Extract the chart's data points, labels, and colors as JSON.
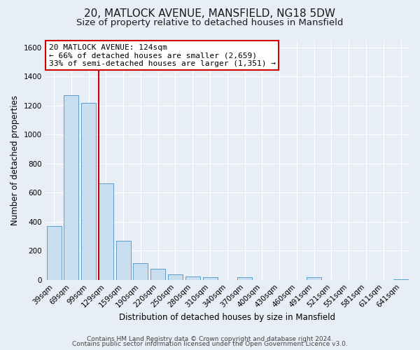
{
  "title": "20, MATLOCK AVENUE, MANSFIELD, NG18 5DW",
  "subtitle": "Size of property relative to detached houses in Mansfield",
  "xlabel": "Distribution of detached houses by size in Mansfield",
  "ylabel": "Number of detached properties",
  "bar_labels": [
    "39sqm",
    "69sqm",
    "99sqm",
    "129sqm",
    "159sqm",
    "190sqm",
    "220sqm",
    "250sqm",
    "280sqm",
    "310sqm",
    "340sqm",
    "370sqm",
    "400sqm",
    "430sqm",
    "460sqm",
    "491sqm",
    "521sqm",
    "551sqm",
    "581sqm",
    "611sqm",
    "641sqm"
  ],
  "bar_values": [
    370,
    1270,
    1220,
    665,
    270,
    115,
    75,
    38,
    22,
    20,
    0,
    18,
    0,
    0,
    0,
    20,
    0,
    0,
    0,
    0,
    5
  ],
  "bar_color": "#c9dff0",
  "bar_edge_color": "#5b9ec9",
  "vline_color": "#cc0000",
  "vline_x_bar_index": 2.575,
  "ylim": [
    0,
    1650
  ],
  "yticks": [
    0,
    200,
    400,
    600,
    800,
    1000,
    1200,
    1400,
    1600
  ],
  "annotation_title": "20 MATLOCK AVENUE: 124sqm",
  "annotation_line1": "← 66% of detached houses are smaller (2,659)",
  "annotation_line2": "33% of semi-detached houses are larger (1,351) →",
  "annotation_box_facecolor": "#ffffff",
  "annotation_box_edgecolor": "#cc0000",
  "footer_line1": "Contains HM Land Registry data © Crown copyright and database right 2024.",
  "footer_line2": "Contains public sector information licensed under the Open Government Licence v3.0.",
  "fig_facecolor": "#e8eef5",
  "plot_facecolor": "#e8eef5",
  "grid_color": "#ffffff",
  "title_fontsize": 11,
  "subtitle_fontsize": 9.5,
  "axis_label_fontsize": 8.5,
  "tick_fontsize": 7.5,
  "annotation_fontsize": 8,
  "footer_fontsize": 6.5
}
